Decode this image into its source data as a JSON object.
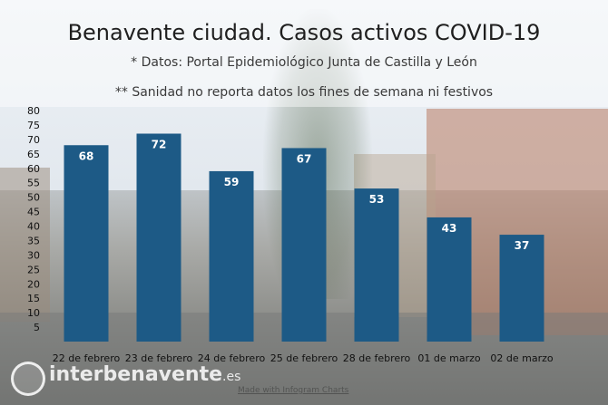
{
  "chart_data": {
    "type": "bar",
    "title": "Benavente ciudad. Casos activos COVID-19",
    "subtitle": "* Datos: Portal Epidemiológico Junta de Castilla y León",
    "note": "** Sanidad no reporta datos los fines de semana  ni festivos",
    "categories": [
      "22 de febrero",
      "23 de febrero",
      "24 de febrero",
      "25 de febrero",
      "28 de febrero",
      "01 de marzo",
      "02 de marzo"
    ],
    "values": [
      68,
      72,
      59,
      67,
      53,
      43,
      37
    ],
    "ylim": [
      0,
      80
    ],
    "yticks": [
      5,
      10,
      15,
      20,
      25,
      30,
      35,
      40,
      45,
      50,
      55,
      60,
      65,
      70,
      75,
      80
    ],
    "xlabel": "",
    "ylabel": "",
    "data_labels": true,
    "grid": false,
    "legend": "none",
    "bar_color": "#1d5a86"
  },
  "branding": {
    "logo_name": "interbenavente",
    "logo_tld": ".es",
    "credit": "Made with Infogram Charts"
  }
}
